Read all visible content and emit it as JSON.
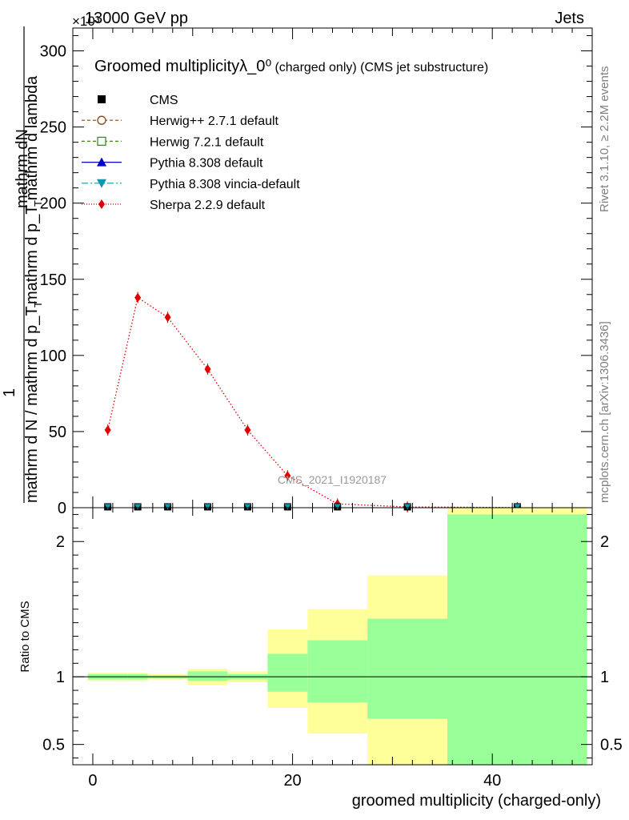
{
  "header": {
    "energy_label": "13000 GeV pp",
    "exponent_label": "×10³",
    "group_label": "Jets",
    "side_top": "Rivet 3.1.10, ≥ 2.2M events",
    "side_bottom": "mcplots.cern.ch [arXiv:1306.3436]",
    "analysis_id": "CMS_2021_I1920187"
  },
  "chart_data": [
    {
      "type": "line",
      "title": "Groomed multiplicityλ_0⁰",
      "subtitle": "(charged only) (CMS jet substructure)",
      "ylabel_top": "mathrm dN",
      "ylabel_mid": "mathrm d p_T mathrm d lambda",
      "ylabel_sub": "T",
      "ylabel_one": "1",
      "ylabel_bottom": "mathrm d N / mathrm d p_T",
      "ylabel_sub2": "T",
      "ylim": [
        0,
        315
      ],
      "xlim": [
        -2,
        50
      ],
      "y_ticks": [
        "0",
        "50",
        "100",
        "150",
        "200",
        "250",
        "300"
      ],
      "y_tick_values": [
        0,
        50,
        100,
        150,
        200,
        250,
        300
      ],
      "legend_position": "top-left",
      "legend": [
        {
          "name": "CMS",
          "color": "#000000",
          "marker": "square",
          "dash": "none"
        },
        {
          "name": "Herwig++ 2.7.1 default",
          "color": "#8b4513",
          "marker": "circle-open",
          "dash": "4,3"
        },
        {
          "name": "Herwig 7.2.1 default",
          "color": "#3c8c14",
          "marker": "square-open",
          "dash": "4,3"
        },
        {
          "name": "Pythia 8.308 default",
          "color": "#0000c8",
          "marker": "triangle",
          "dash": "none"
        },
        {
          "name": "Pythia 8.308 vincia-default",
          "color": "#0a9ab0",
          "marker": "triangle-down",
          "dash": "8,3,2,3"
        },
        {
          "name": "Sherpa 2.2.9 default",
          "color": "#e00000",
          "marker": "diamond",
          "dash": "1,2"
        }
      ],
      "sherpa": {
        "x": [
          1.5,
          4.5,
          7.5,
          11.5,
          15.5,
          19.5,
          24.5,
          31.5,
          42.5
        ],
        "y": [
          51,
          138,
          125,
          91,
          51,
          21,
          2.5,
          0.5,
          0.1
        ]
      },
      "cms_points": {
        "x": [
          1.5,
          4.5,
          7.5,
          11.5,
          15.5,
          19.5,
          24.5,
          31.5,
          42.5
        ],
        "y": [
          0.3,
          0.3,
          0.3,
          0.3,
          0.3,
          0.3,
          0.3,
          0.3,
          0.3
        ]
      }
    },
    {
      "type": "area",
      "ylabel": "Ratio to CMS",
      "xlabel": "groomed multiplicity (charged-only)",
      "ylim": [
        0.35,
        2.25
      ],
      "y_ticks": [
        "0.5",
        "1",
        "2"
      ],
      "y_tick_values": [
        0.5,
        1,
        2
      ],
      "x_ticks": [
        "0",
        "20",
        "40"
      ],
      "x_tick_values": [
        0,
        20,
        40
      ],
      "bins": [
        {
          "x0": -0.5,
          "x1": 3.5,
          "yellow": [
            0.97,
            1.03
          ],
          "green": [
            0.98,
            1.02
          ]
        },
        {
          "x0": 3.5,
          "x1": 5.5,
          "yellow": [
            0.97,
            1.03
          ],
          "green": [
            0.98,
            1.02
          ]
        },
        {
          "x0": 5.5,
          "x1": 9.5,
          "yellow": [
            0.98,
            1.02
          ],
          "green": [
            0.99,
            1.01
          ]
        },
        {
          "x0": 9.5,
          "x1": 13.5,
          "yellow": [
            0.94,
            1.06
          ],
          "green": [
            0.97,
            1.04
          ]
        },
        {
          "x0": 13.5,
          "x1": 17.5,
          "yellow": [
            0.96,
            1.04
          ],
          "green": [
            0.98,
            1.02
          ]
        },
        {
          "x0": 17.5,
          "x1": 21.5,
          "yellow": [
            0.77,
            1.35
          ],
          "green": [
            0.89,
            1.17
          ]
        },
        {
          "x0": 21.5,
          "x1": 27.5,
          "yellow": [
            0.58,
            1.5
          ],
          "green": [
            0.81,
            1.27
          ]
        },
        {
          "x0": 27.5,
          "x1": 35.5,
          "yellow": [
            0.35,
            1.75
          ],
          "green": [
            0.69,
            1.43
          ]
        },
        {
          "x0": 35.5,
          "x1": 49.5,
          "yellow": [
            0.35,
            2.25
          ],
          "green": [
            0.35,
            2.2
          ]
        }
      ]
    }
  ],
  "colors": {
    "band_yellow": "#ffff99",
    "band_green": "#99ff99",
    "side_text": "#808080",
    "watermark": "#9a9a9a"
  }
}
